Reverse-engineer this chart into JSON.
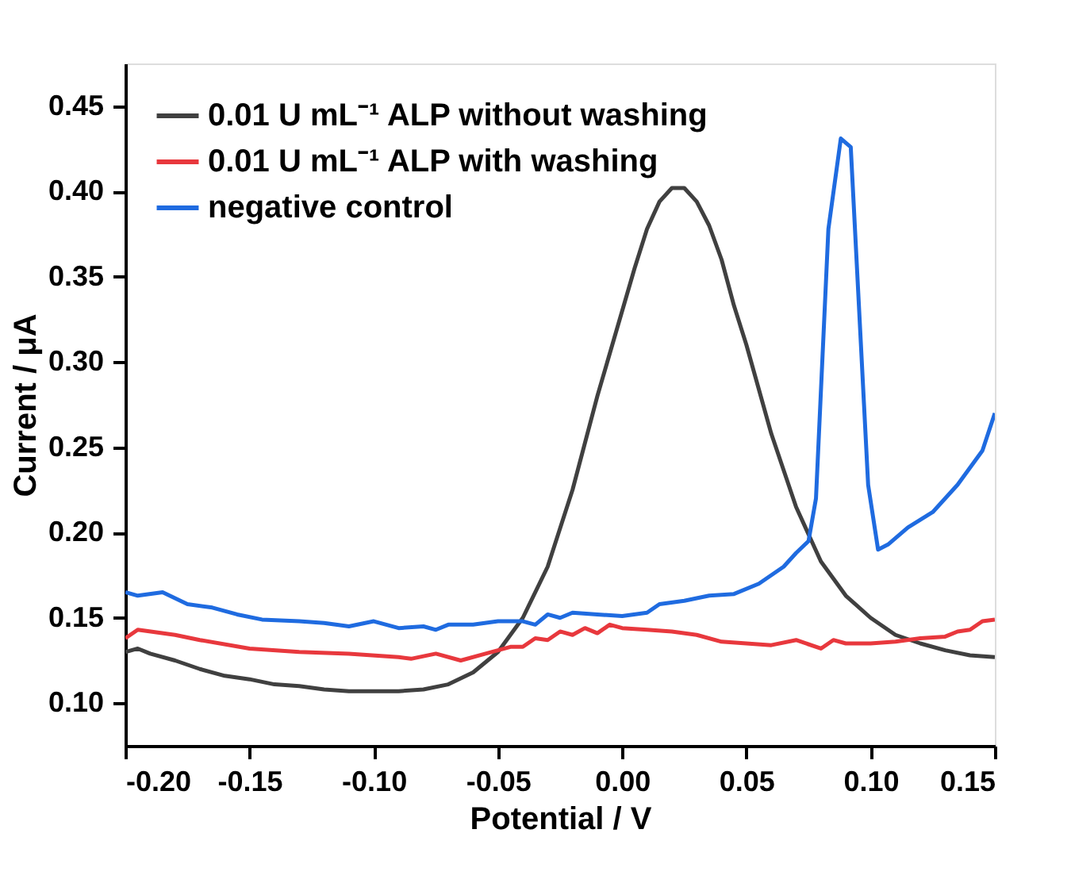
{
  "chart_data": {
    "type": "line",
    "xlabel": "Potential / V",
    "ylabel": "Current / μA",
    "legend": "top left",
    "grid": false,
    "marker": "none",
    "line_style": "solid",
    "xlim": [
      -0.2,
      0.15
    ],
    "ylim": [
      0.075,
      0.475
    ],
    "xticks": [
      {
        "value": -0.2,
        "label": "-0.20"
      },
      {
        "value": -0.15,
        "label": "-0.15"
      },
      {
        "value": -0.1,
        "label": "-0.10"
      },
      {
        "value": -0.05,
        "label": "-0.05"
      },
      {
        "value": 0,
        "label": "0.00"
      },
      {
        "value": 0.05,
        "label": "0.05"
      },
      {
        "value": 0.1,
        "label": "0.10"
      },
      {
        "value": 0.15,
        "label": "0.15"
      }
    ],
    "yticks": [
      {
        "value": 0.1,
        "label": "0.10"
      },
      {
        "value": 0.15,
        "label": "0.15"
      },
      {
        "value": 0.2,
        "label": "0.20"
      },
      {
        "value": 0.25,
        "label": "0.25"
      },
      {
        "value": 0.3,
        "label": "0.30"
      },
      {
        "value": 0.35,
        "label": "0.35"
      },
      {
        "value": 0.4,
        "label": "0.40"
      },
      {
        "value": 0.45,
        "label": "0.45"
      }
    ],
    "series": [
      {
        "name": "0.01 U mL⁻¹ ALP without washing",
        "color": "#404040",
        "x": [
          -0.2,
          -0.195,
          -0.19,
          -0.18,
          -0.17,
          -0.16,
          -0.15,
          -0.14,
          -0.13,
          -0.12,
          -0.11,
          -0.1,
          -0.09,
          -0.08,
          -0.07,
          -0.06,
          -0.05,
          -0.04,
          -0.03,
          -0.02,
          -0.01,
          0.0,
          0.005,
          0.01,
          0.015,
          0.02,
          0.025,
          0.03,
          0.035,
          0.04,
          0.045,
          0.05,
          0.06,
          0.07,
          0.08,
          0.09,
          0.1,
          0.11,
          0.12,
          0.13,
          0.14,
          0.15
        ],
        "values": [
          0.13,
          0.132,
          0.129,
          0.125,
          0.12,
          0.116,
          0.114,
          0.111,
          0.11,
          0.108,
          0.107,
          0.107,
          0.107,
          0.108,
          0.111,
          0.118,
          0.13,
          0.15,
          0.18,
          0.225,
          0.28,
          0.33,
          0.355,
          0.378,
          0.394,
          0.402,
          0.402,
          0.394,
          0.38,
          0.36,
          0.333,
          0.31,
          0.258,
          0.215,
          0.183,
          0.163,
          0.15,
          0.14,
          0.135,
          0.131,
          0.128,
          0.127
        ]
      },
      {
        "name": "0.01 U mL⁻¹ ALP with washing",
        "color": "#e8383d",
        "x": [
          -0.2,
          -0.195,
          -0.18,
          -0.17,
          -0.15,
          -0.13,
          -0.11,
          -0.09,
          -0.085,
          -0.075,
          -0.065,
          -0.055,
          -0.045,
          -0.04,
          -0.035,
          -0.03,
          -0.025,
          -0.02,
          -0.015,
          -0.01,
          -0.005,
          0.0,
          0.01,
          0.02,
          0.03,
          0.04,
          0.05,
          0.06,
          0.07,
          0.08,
          0.085,
          0.09,
          0.1,
          0.11,
          0.12,
          0.13,
          0.135,
          0.14,
          0.145,
          0.15
        ],
        "values": [
          0.138,
          0.143,
          0.14,
          0.137,
          0.132,
          0.13,
          0.129,
          0.127,
          0.126,
          0.129,
          0.125,
          0.129,
          0.133,
          0.133,
          0.138,
          0.137,
          0.142,
          0.14,
          0.144,
          0.141,
          0.146,
          0.144,
          0.143,
          0.142,
          0.14,
          0.136,
          0.135,
          0.134,
          0.137,
          0.132,
          0.137,
          0.135,
          0.135,
          0.136,
          0.138,
          0.139,
          0.142,
          0.143,
          0.148,
          0.149
        ]
      },
      {
        "name": "negative control",
        "color": "#1f6be0",
        "x": [
          -0.2,
          -0.195,
          -0.185,
          -0.175,
          -0.165,
          -0.155,
          -0.145,
          -0.13,
          -0.12,
          -0.11,
          -0.1,
          -0.09,
          -0.08,
          -0.075,
          -0.07,
          -0.06,
          -0.05,
          -0.04,
          -0.035,
          -0.03,
          -0.025,
          -0.02,
          -0.01,
          0.0,
          0.01,
          0.015,
          0.025,
          0.035,
          0.045,
          0.055,
          0.065,
          0.07,
          0.075,
          0.078,
          0.083,
          0.088,
          0.092,
          0.099,
          0.103,
          0.107,
          0.115,
          0.125,
          0.135,
          0.145,
          0.15
        ],
        "values": [
          0.165,
          0.163,
          0.165,
          0.158,
          0.156,
          0.152,
          0.149,
          0.148,
          0.147,
          0.145,
          0.148,
          0.144,
          0.145,
          0.143,
          0.146,
          0.146,
          0.148,
          0.148,
          0.146,
          0.152,
          0.15,
          0.153,
          0.152,
          0.151,
          0.153,
          0.158,
          0.16,
          0.163,
          0.164,
          0.17,
          0.18,
          0.188,
          0.195,
          0.22,
          0.378,
          0.431,
          0.426,
          0.228,
          0.19,
          0.193,
          0.203,
          0.212,
          0.228,
          0.248,
          0.27
        ]
      }
    ]
  }
}
